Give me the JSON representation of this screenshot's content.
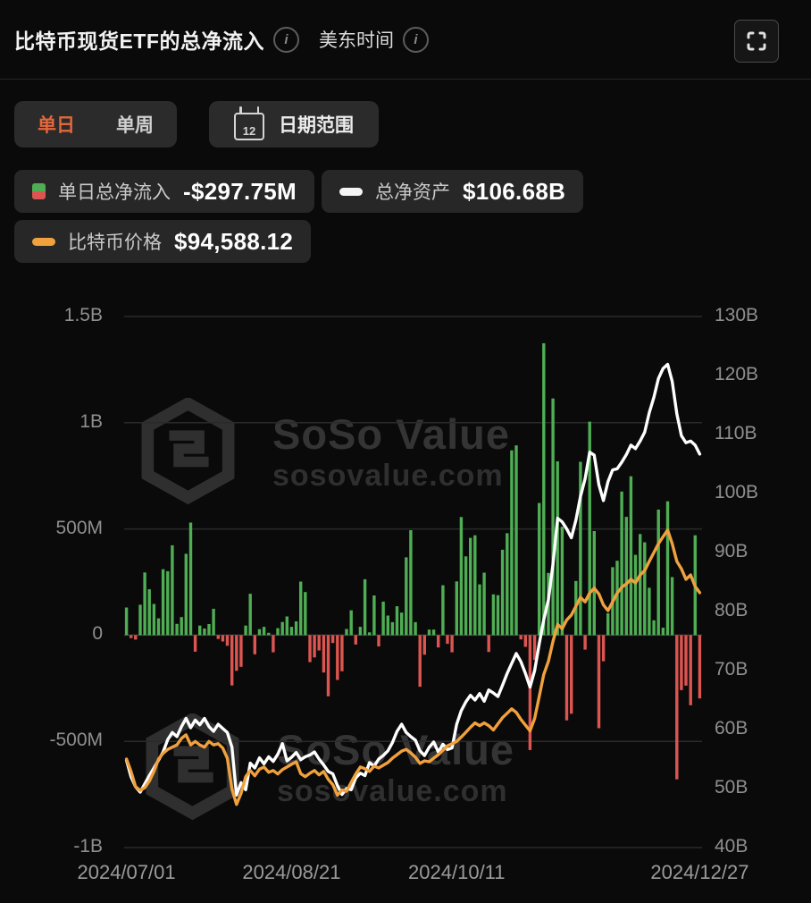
{
  "header": {
    "title": "比特币现货ETF的总净流入",
    "timezone_label": "美东时间",
    "info_glyph": "i"
  },
  "controls": {
    "day_tab": "单日",
    "week_tab": "单周",
    "date_range_label": "日期范围",
    "calendar_day": "12",
    "accent_color": "#E2683C"
  },
  "legend": {
    "flow": {
      "label": "单日总净流入",
      "value": "-$297.75M"
    },
    "assets": {
      "label": "总净资产",
      "value": "$106.68B"
    },
    "price": {
      "label": "比特币价格",
      "value": "$94,588.12"
    }
  },
  "watermark": {
    "brand": "SoSo Value",
    "domain": "sosovalue.com"
  },
  "chart_data": {
    "type": "combo",
    "title": "比特币现货ETF的总净流入",
    "date_start": "2024/07/01",
    "date_end": "2024/12/27",
    "grid": true,
    "x_ticks": [
      {
        "label": "2024/07/01",
        "index": 0
      },
      {
        "label": "2024/08/21",
        "index": 36
      },
      {
        "label": "2024/10/11",
        "index": 72
      },
      {
        "label": "2024/12/27",
        "index": 125
      }
    ],
    "left_axis": {
      "unit": "USD",
      "min": -1000,
      "max": 1500,
      "ticks": [
        {
          "label": "1.5B",
          "value": 1500
        },
        {
          "label": "1B",
          "value": 1000
        },
        {
          "label": "500M",
          "value": 500
        },
        {
          "label": "0",
          "value": 0
        },
        {
          "label": "-500M",
          "value": -500
        },
        {
          "label": "-1B",
          "value": -1000
        }
      ]
    },
    "right_axis": {
      "unit": "USD B",
      "min": 40,
      "max": 130,
      "ticks": [
        {
          "label": "130B",
          "value": 130
        },
        {
          "label": "120B",
          "value": 120
        },
        {
          "label": "110B",
          "value": 110
        },
        {
          "label": "100B",
          "value": 100
        },
        {
          "label": "90B",
          "value": 90
        },
        {
          "label": "80B",
          "value": 80
        },
        {
          "label": "70B",
          "value": 70
        },
        {
          "label": "60B",
          "value": 60
        },
        {
          "label": "50B",
          "value": 50
        },
        {
          "label": "40B",
          "value": 40
        }
      ]
    },
    "price_axis": {
      "min": 36700,
      "max": 157300,
      "hidden": true
    },
    "bars": {
      "name": "单日总净流入",
      "unit": "USD M",
      "positive_color": "#4FAE54",
      "negative_color": "#DD5550",
      "values": [
        130,
        -14,
        -21,
        143,
        295,
        216,
        147,
        79,
        310,
        301,
        423,
        53,
        85,
        383,
        530,
        -78,
        45,
        31,
        52,
        124,
        -18,
        -30,
        -50,
        -237,
        -168,
        -149,
        45,
        195,
        -90,
        28,
        39,
        11,
        -81,
        33,
        62,
        88,
        39,
        65,
        252,
        203,
        -127,
        -105,
        -72,
        -176,
        -288,
        -37,
        -211,
        -170,
        29,
        117,
        -44,
        39,
        263,
        13,
        187,
        -53,
        158,
        92,
        61,
        136,
        106,
        366,
        494,
        61,
        -243,
        -92,
        26,
        26,
        -58,
        235,
        -41,
        -81,
        253,
        556,
        371,
        458,
        470,
        239,
        294,
        -79,
        192,
        188,
        402,
        480,
        870,
        893,
        -20,
        -55,
        -541,
        -117,
        622,
        1374,
        293,
        1114,
        818,
        510,
        -401,
        -370,
        255,
        816,
        -68,
        1005,
        490,
        -438,
        -123,
        103,
        320,
        350,
        676,
        557,
        748,
        378,
        476,
        437,
        223,
        70,
        591,
        35,
        630,
        273,
        -679,
        -259,
        -238,
        -330,
        470,
        -298
      ]
    },
    "net_assets": {
      "name": "总净资产",
      "unit": "USD B",
      "color": "#FFFFFF",
      "values": [
        54.8,
        52.0,
        50.3,
        49.4,
        50.8,
        52.2,
        53.5,
        54.8,
        56.2,
        58.3,
        59.5,
        58.8,
        60.5,
        61.9,
        60.3,
        61.6,
        60.8,
        61.9,
        60.5,
        59.7,
        60.9,
        60.2,
        59.5,
        57.0,
        48.9,
        51.0,
        49.8,
        54.3,
        53.5,
        55.2,
        54.2,
        55.4,
        54.6,
        55.8,
        57.6,
        54.7,
        55.3,
        56.1,
        54.9,
        55.4,
        55.7,
        56.2,
        55.0,
        54.0,
        52.9,
        52.5,
        50.5,
        49.0,
        50.0,
        49.8,
        51.8,
        52.6,
        52.2,
        54.4,
        53.8,
        55.0,
        55.6,
        56.4,
        57.8,
        59.7,
        60.9,
        59.5,
        58.8,
        58.2,
        56.4,
        55.6,
        57.0,
        57.9,
        56.2,
        57.5,
        56.6,
        56.9,
        60.9,
        63.2,
        64.7,
        65.8,
        65.0,
        66.1,
        64.8,
        66.7,
        66.2,
        65.6,
        67.5,
        69.5,
        71.2,
        72.9,
        71.5,
        69.5,
        67.2,
        70.0,
        74.5,
        78.6,
        82.0,
        88.0,
        95.8,
        95.2,
        94.0,
        92.5,
        95.5,
        99.5,
        102.5,
        107.0,
        106.5,
        101.5,
        98.8,
        102.0,
        104.0,
        104.2,
        105.3,
        106.6,
        108.2,
        107.6,
        108.9,
        110.4,
        113.7,
        116.3,
        119.5,
        121.2,
        121.9,
        119.0,
        113.5,
        109.8,
        108.6,
        108.9,
        108.2,
        106.68
      ]
    },
    "btc_price": {
      "name": "比特币价格",
      "unit": "USD",
      "color": "#F0A13E",
      "values": [
        56800,
        54000,
        50500,
        49700,
        50300,
        51800,
        54000,
        56800,
        58100,
        59000,
        59500,
        60000,
        61500,
        62300,
        60000,
        60800,
        60000,
        59500,
        60800,
        60000,
        60300,
        59300,
        57000,
        50000,
        46500,
        49000,
        52800,
        54200,
        53000,
        54500,
        55000,
        53800,
        54200,
        53400,
        54400,
        55000,
        55600,
        56200,
        53500,
        52800,
        53600,
        54200,
        53200,
        54000,
        52200,
        51000,
        48600,
        49800,
        49500,
        51500,
        53400,
        55000,
        54600,
        54000,
        55200,
        54800,
        55400,
        56000,
        57000,
        57800,
        58600,
        59000,
        58200,
        57200,
        55800,
        56400,
        56200,
        57000,
        57800,
        58800,
        59800,
        60300,
        60800,
        61800,
        62900,
        64000,
        65000,
        64400,
        65000,
        64400,
        63400,
        64800,
        66200,
        67200,
        68200,
        67400,
        65800,
        64500,
        63200,
        66000,
        71000,
        76000,
        79000,
        83500,
        87400,
        86400,
        88400,
        89500,
        91500,
        93500,
        92500,
        94500,
        95600,
        94300,
        91800,
        90500,
        92500,
        94500,
        95800,
        96600,
        97600,
        96800,
        98600,
        99600,
        101700,
        103700,
        105700,
        107300,
        108800,
        105700,
        101700,
        100000,
        97600,
        98600,
        96000,
        94588
      ]
    },
    "grid_color": "#2a2a2a",
    "zero_line_color": "#3d3d3d"
  }
}
